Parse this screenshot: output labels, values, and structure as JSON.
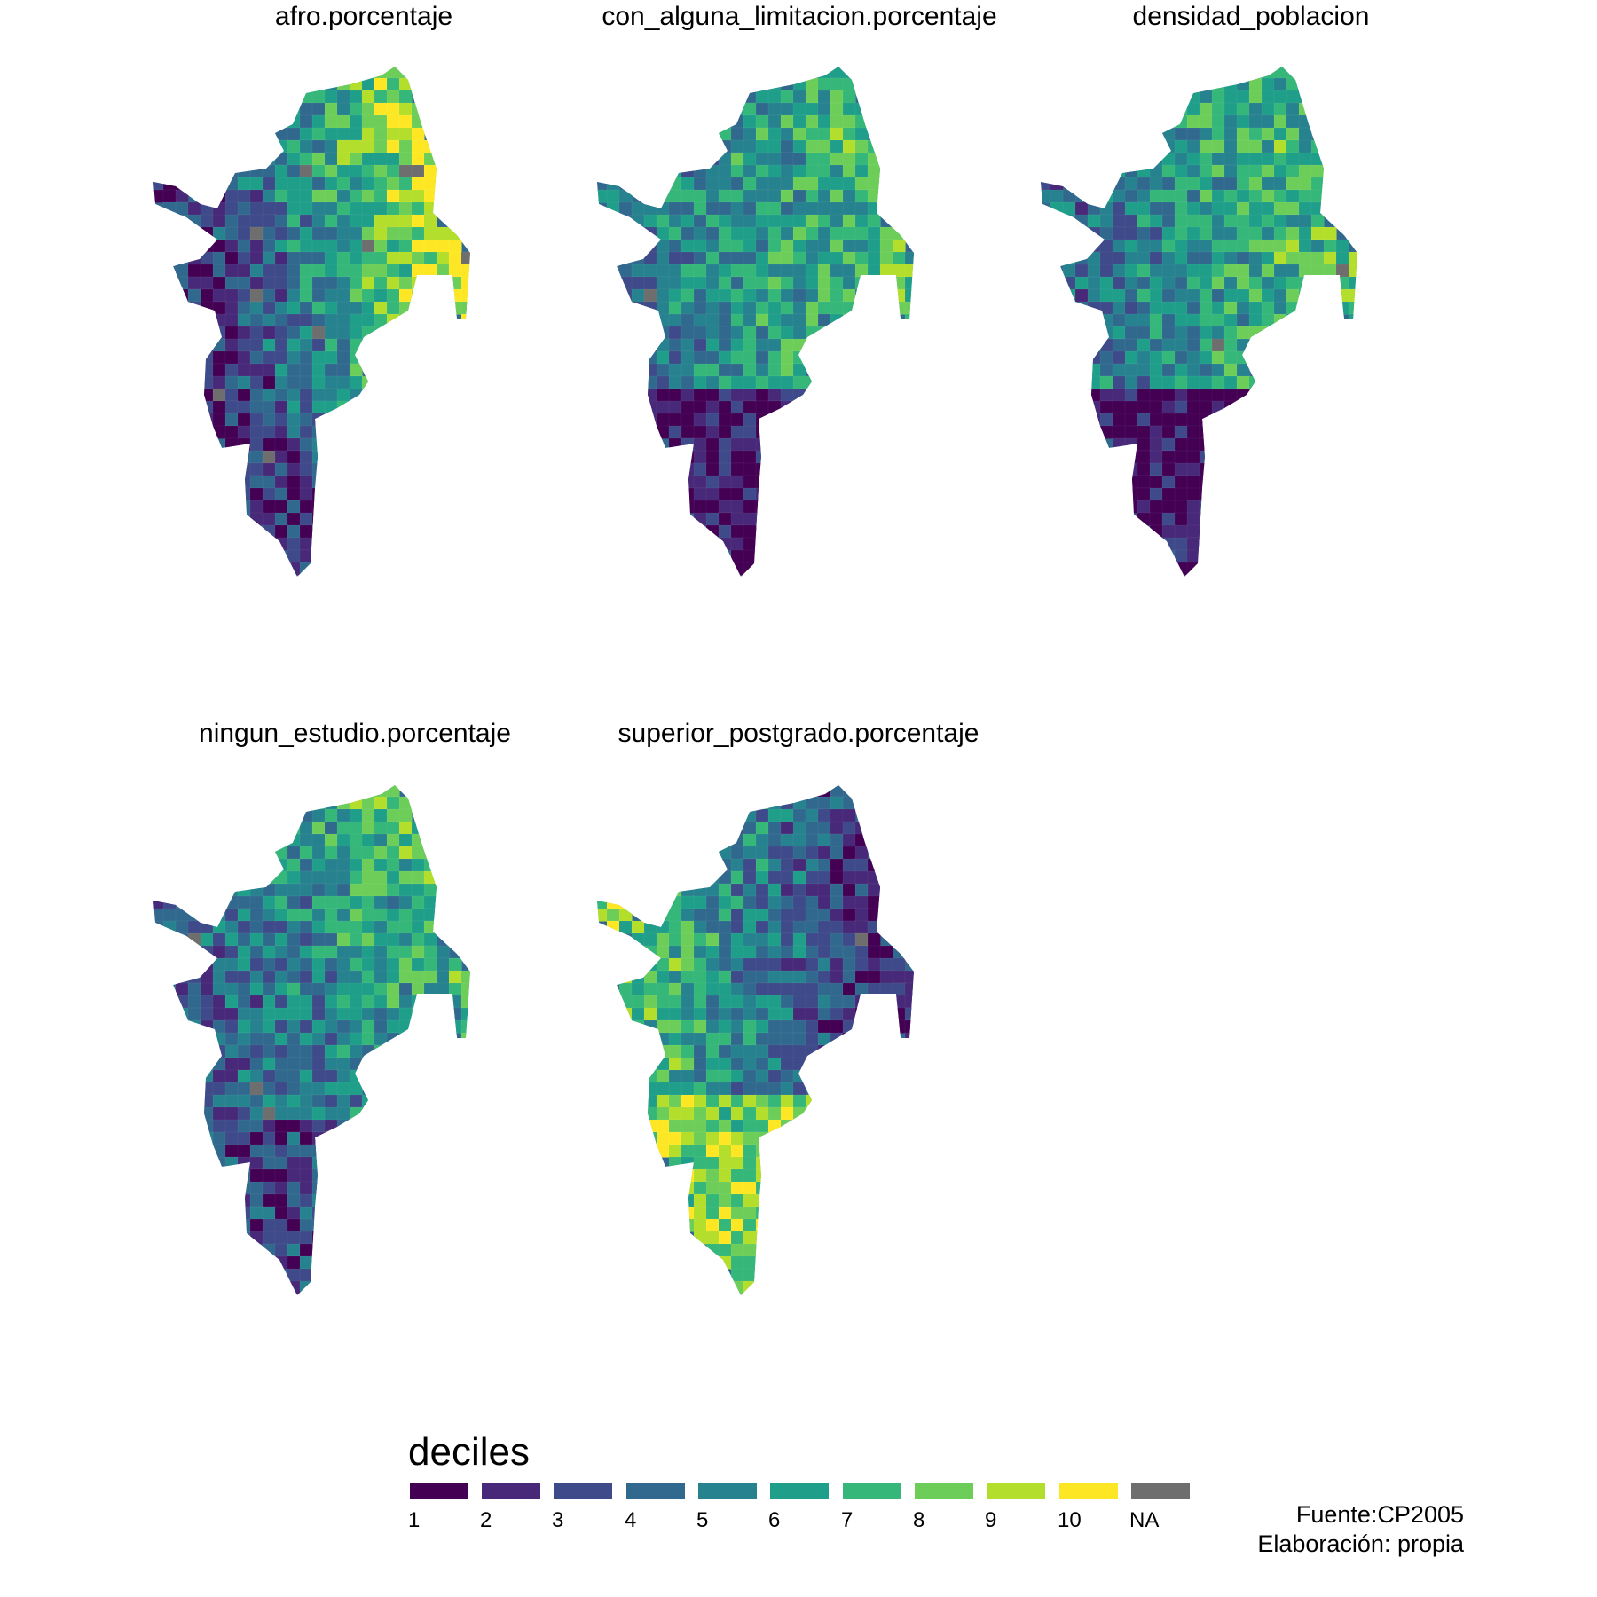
{
  "panels": [
    {
      "title": "afro.porcentaje"
    },
    {
      "title": "con_alguna_limitacion.porcentaje"
    },
    {
      "title": "densidad_poblacion"
    },
    {
      "title": "ningun_estudio.porcentaje"
    },
    {
      "title": "superior_postgrado.porcentaje"
    }
  ],
  "legend": {
    "title": "deciles",
    "keys": [
      {
        "label": "1",
        "color": "#440154"
      },
      {
        "label": "2",
        "color": "#482878"
      },
      {
        "label": "3",
        "color": "#3E4A89"
      },
      {
        "label": "4",
        "color": "#31688E"
      },
      {
        "label": "5",
        "color": "#26828E"
      },
      {
        "label": "6",
        "color": "#1F9E89"
      },
      {
        "label": "7",
        "color": "#35B779"
      },
      {
        "label": "8",
        "color": "#6DCD59"
      },
      {
        "label": "9",
        "color": "#B4DE2C"
      },
      {
        "label": "10",
        "color": "#FDE725"
      },
      {
        "label": "NA",
        "color": "#6E6E6E"
      }
    ]
  },
  "caption": {
    "source": "Fuente:CP2005",
    "author": "Elaboración: propia"
  }
}
